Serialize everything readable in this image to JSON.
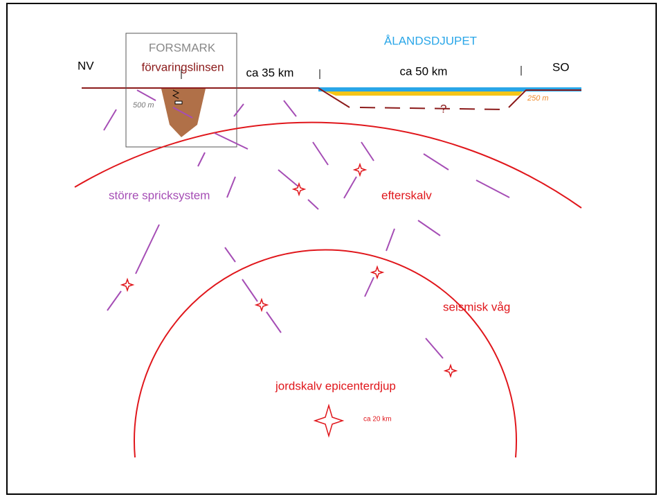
{
  "labels": {
    "forsmark": "FORSMARK",
    "repository": "förvaringslinsen",
    "sea": "ÅLANDSDJUPET",
    "nw": "NV",
    "se": "SO",
    "dist1": "ca 35 km",
    "dist2": "ca 50 km",
    "depth1": "500 m",
    "depth2": "250 m",
    "unknown": "?",
    "fractures": "större spricksystem",
    "aftershock": "efterskalv",
    "wave": "seismisk våg",
    "epicenter": "jordskalv epicenterdjup",
    "epidepth": "ca 20 km"
  }
}
